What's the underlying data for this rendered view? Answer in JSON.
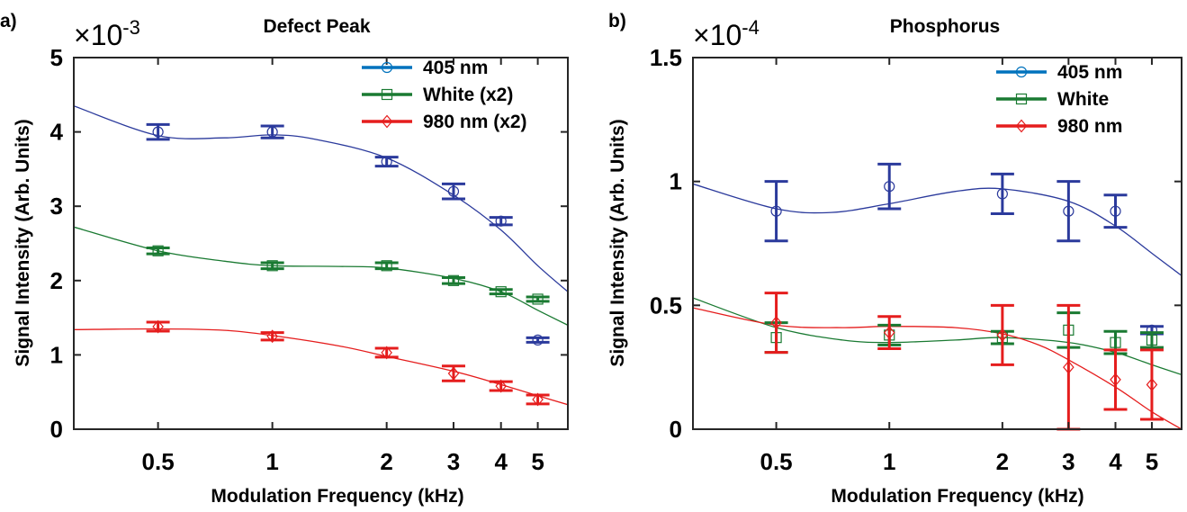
{
  "chart_data": [
    {
      "panel_label": "a)",
      "type": "line",
      "title": "Defect Peak",
      "xlabel": "Modulation Frequency (kHz)",
      "ylabel": "Signal Intensity (Arb. Units)",
      "x_scale": "log",
      "xlim": [
        0.3,
        6
      ],
      "ylim": [
        0,
        5
      ],
      "y_multiplier": "×10",
      "y_exponent": "-3",
      "x_ticks": [
        {
          "value": 0.5,
          "label": "0.5"
        },
        {
          "value": 1,
          "label": "1"
        },
        {
          "value": 2,
          "label": "2"
        },
        {
          "value": 3,
          "label": "3"
        },
        {
          "value": 4,
          "label": "4"
        },
        {
          "value": 5,
          "label": "5"
        }
      ],
      "y_ticks": [
        {
          "value": 0,
          "label": "0"
        },
        {
          "value": 1,
          "label": "1"
        },
        {
          "value": 2,
          "label": "2"
        },
        {
          "value": 3,
          "label": "3"
        },
        {
          "value": 4,
          "label": "4"
        },
        {
          "value": 5,
          "label": "5"
        }
      ],
      "legend_position": "top-right",
      "series": [
        {
          "name": "405 nm",
          "color": "#2b3a9c",
          "legend_color": "#0072bd",
          "marker": "circle",
          "x": [
            0.5,
            1,
            2,
            3,
            4,
            5
          ],
          "y": [
            4.0,
            4.0,
            3.6,
            3.2,
            2.8,
            1.2
          ],
          "err": [
            0.1,
            0.08,
            0.06,
            0.1,
            0.05,
            0.03
          ],
          "fit_x": [
            0.3,
            0.5,
            0.75,
            1,
            1.3,
            2,
            3,
            4,
            5,
            6
          ],
          "fit_y": [
            4.35,
            3.95,
            3.92,
            3.96,
            3.9,
            3.65,
            3.15,
            2.68,
            2.2,
            1.85
          ]
        },
        {
          "name": "White (x2)",
          "color": "#1a7a32",
          "legend_color": "#1a7a32",
          "marker": "square",
          "x": [
            0.5,
            1,
            2,
            3,
            4,
            5
          ],
          "y": [
            2.4,
            2.2,
            2.2,
            2.0,
            1.85,
            1.75
          ],
          "err": [
            0.04,
            0.04,
            0.04,
            0.04,
            0.03,
            0.03
          ],
          "fit_x": [
            0.3,
            0.5,
            0.75,
            1,
            1.5,
            2,
            3,
            4,
            5,
            6
          ],
          "fit_y": [
            2.72,
            2.4,
            2.26,
            2.2,
            2.19,
            2.17,
            2.03,
            1.85,
            1.6,
            1.4
          ]
        },
        {
          "name": "980 nm (x2)",
          "color": "#e51d1d",
          "legend_color": "#e51d1d",
          "marker": "diamond",
          "x": [
            0.5,
            1,
            2,
            3,
            4,
            5
          ],
          "y": [
            1.38,
            1.25,
            1.03,
            0.75,
            0.58,
            0.4
          ],
          "err": [
            0.06,
            0.05,
            0.06,
            0.1,
            0.06,
            0.06
          ],
          "fit_x": [
            0.3,
            0.5,
            0.75,
            1,
            1.5,
            2,
            3,
            4,
            5,
            6
          ],
          "fit_y": [
            1.34,
            1.35,
            1.33,
            1.26,
            1.12,
            0.98,
            0.78,
            0.6,
            0.45,
            0.33
          ]
        }
      ]
    },
    {
      "panel_label": "b)",
      "type": "line",
      "title": "Phosphorus",
      "xlabel": "Modulation Frequency (kHz)",
      "ylabel": "Signal Intensity (Arb. Units)",
      "x_scale": "log",
      "xlim": [
        0.3,
        6
      ],
      "ylim": [
        0,
        1.5
      ],
      "y_multiplier": "×10",
      "y_exponent": "-4",
      "x_ticks": [
        {
          "value": 0.5,
          "label": "0.5"
        },
        {
          "value": 1,
          "label": "1"
        },
        {
          "value": 2,
          "label": "2"
        },
        {
          "value": 3,
          "label": "3"
        },
        {
          "value": 4,
          "label": "4"
        },
        {
          "value": 5,
          "label": "5"
        }
      ],
      "y_ticks": [
        {
          "value": 0,
          "label": "0"
        },
        {
          "value": 0.5,
          "label": "0.5"
        },
        {
          "value": 1,
          "label": "1"
        },
        {
          "value": 1.5,
          "label": "1.5"
        }
      ],
      "legend_position": "top-right",
      "series": [
        {
          "name": "405 nm",
          "color": "#2b3a9c",
          "legend_color": "#0072bd",
          "marker": "circle",
          "x": [
            0.5,
            1,
            2,
            3,
            4,
            5
          ],
          "y": [
            0.88,
            0.98,
            0.95,
            0.88,
            0.88,
            0.4
          ],
          "err": [
            0.12,
            0.09,
            0.08,
            0.12,
            0.065,
            0.015
          ],
          "fit_x": [
            0.3,
            0.5,
            0.7,
            1,
            1.5,
            2,
            3,
            4,
            5,
            6
          ],
          "fit_y": [
            0.99,
            0.89,
            0.875,
            0.91,
            0.96,
            0.97,
            0.92,
            0.82,
            0.71,
            0.62
          ]
        },
        {
          "name": "White",
          "color": "#1a7a32",
          "legend_color": "#1a7a32",
          "marker": "square",
          "x": [
            0.5,
            1,
            2,
            3,
            4,
            5
          ],
          "y": [
            0.37,
            0.38,
            0.37,
            0.4,
            0.35,
            0.36
          ],
          "err": [
            0.06,
            0.04,
            0.025,
            0.07,
            0.045,
            0.03
          ],
          "fit_x": [
            0.3,
            0.5,
            0.75,
            1,
            1.5,
            2,
            3,
            4,
            5,
            6
          ],
          "fit_y": [
            0.53,
            0.41,
            0.36,
            0.35,
            0.36,
            0.37,
            0.35,
            0.31,
            0.26,
            0.22
          ]
        },
        {
          "name": "980 nm",
          "color": "#e51d1d",
          "legend_color": "#e51d1d",
          "marker": "diamond",
          "x": [
            0.5,
            1,
            2,
            3,
            4,
            5
          ],
          "y": [
            0.43,
            0.39,
            0.38,
            0.25,
            0.2,
            0.18
          ],
          "err": [
            0.12,
            0.065,
            0.12,
            0.25,
            0.12,
            0.14
          ],
          "fit_x": [
            0.3,
            0.5,
            0.75,
            1,
            1.5,
            2,
            2.5,
            3,
            4,
            5,
            6
          ],
          "fit_y": [
            0.49,
            0.42,
            0.41,
            0.415,
            0.41,
            0.385,
            0.34,
            0.28,
            0.17,
            0.07,
            0.0
          ]
        }
      ]
    }
  ]
}
